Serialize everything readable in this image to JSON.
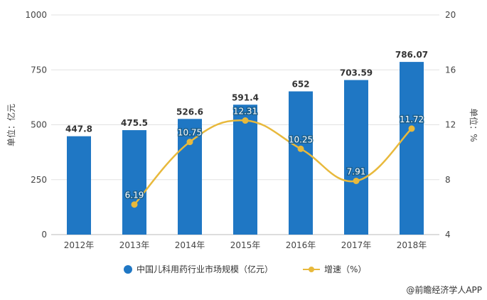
{
  "chart_data": {
    "type": "bar+line",
    "categories": [
      "2012年",
      "2013年",
      "2014年",
      "2015年",
      "2016年",
      "2017年",
      "2018年"
    ],
    "series": [
      {
        "name": "中国儿科用药行业市场规模（亿元）",
        "type": "bar",
        "axis": "left",
        "values": [
          447.8,
          475.5,
          526.6,
          591.4,
          652,
          703.59,
          786.07
        ],
        "labels": [
          "447.8",
          "475.5",
          "526.6",
          "591.4",
          "652",
          "703.59",
          "786.07"
        ],
        "color": "#1f77c4"
      },
      {
        "name": "增速（%）",
        "type": "line",
        "axis": "right",
        "values": [
          null,
          6.19,
          10.75,
          12.31,
          10.25,
          7.91,
          11.72
        ],
        "labels": [
          "",
          "6.19",
          "10.75",
          "12.31",
          "10.25",
          "7.91",
          "11.72"
        ],
        "color": "#e8b93c"
      }
    ],
    "ylabel_left": "单位：亿元",
    "ylabel_right": "单位：%",
    "ylim_left": [
      0,
      1000
    ],
    "yticks_left": [
      "0",
      "250",
      "500",
      "750",
      "1000"
    ],
    "ylim_right": [
      4,
      20
    ],
    "yticks_right": [
      "4",
      "8",
      "12",
      "16",
      "20"
    ],
    "grid": true,
    "legend_position": "bottom"
  },
  "credit": "@前瞻经济学人APP"
}
